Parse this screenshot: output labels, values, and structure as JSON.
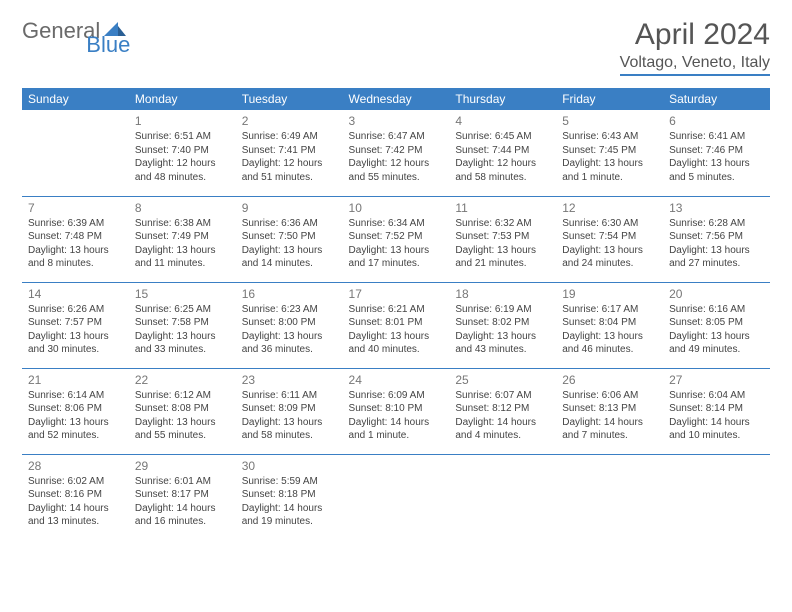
{
  "logo": {
    "part1": "General",
    "part2": "Blue"
  },
  "title": "April 2024",
  "location": "Voltago, Veneto, Italy",
  "headers": [
    "Sunday",
    "Monday",
    "Tuesday",
    "Wednesday",
    "Thursday",
    "Friday",
    "Saturday"
  ],
  "colors": {
    "accent": "#3a7fc4",
    "text": "#444",
    "muted": "#777"
  },
  "weeks": [
    [
      null,
      {
        "n": "1",
        "sr": "6:51 AM",
        "ss": "7:40 PM",
        "dl": "12 hours and 48 minutes."
      },
      {
        "n": "2",
        "sr": "6:49 AM",
        "ss": "7:41 PM",
        "dl": "12 hours and 51 minutes."
      },
      {
        "n": "3",
        "sr": "6:47 AM",
        "ss": "7:42 PM",
        "dl": "12 hours and 55 minutes."
      },
      {
        "n": "4",
        "sr": "6:45 AM",
        "ss": "7:44 PM",
        "dl": "12 hours and 58 minutes."
      },
      {
        "n": "5",
        "sr": "6:43 AM",
        "ss": "7:45 PM",
        "dl": "13 hours and 1 minute."
      },
      {
        "n": "6",
        "sr": "6:41 AM",
        "ss": "7:46 PM",
        "dl": "13 hours and 5 minutes."
      }
    ],
    [
      {
        "n": "7",
        "sr": "6:39 AM",
        "ss": "7:48 PM",
        "dl": "13 hours and 8 minutes."
      },
      {
        "n": "8",
        "sr": "6:38 AM",
        "ss": "7:49 PM",
        "dl": "13 hours and 11 minutes."
      },
      {
        "n": "9",
        "sr": "6:36 AM",
        "ss": "7:50 PM",
        "dl": "13 hours and 14 minutes."
      },
      {
        "n": "10",
        "sr": "6:34 AM",
        "ss": "7:52 PM",
        "dl": "13 hours and 17 minutes."
      },
      {
        "n": "11",
        "sr": "6:32 AM",
        "ss": "7:53 PM",
        "dl": "13 hours and 21 minutes."
      },
      {
        "n": "12",
        "sr": "6:30 AM",
        "ss": "7:54 PM",
        "dl": "13 hours and 24 minutes."
      },
      {
        "n": "13",
        "sr": "6:28 AM",
        "ss": "7:56 PM",
        "dl": "13 hours and 27 minutes."
      }
    ],
    [
      {
        "n": "14",
        "sr": "6:26 AM",
        "ss": "7:57 PM",
        "dl": "13 hours and 30 minutes."
      },
      {
        "n": "15",
        "sr": "6:25 AM",
        "ss": "7:58 PM",
        "dl": "13 hours and 33 minutes."
      },
      {
        "n": "16",
        "sr": "6:23 AM",
        "ss": "8:00 PM",
        "dl": "13 hours and 36 minutes."
      },
      {
        "n": "17",
        "sr": "6:21 AM",
        "ss": "8:01 PM",
        "dl": "13 hours and 40 minutes."
      },
      {
        "n": "18",
        "sr": "6:19 AM",
        "ss": "8:02 PM",
        "dl": "13 hours and 43 minutes."
      },
      {
        "n": "19",
        "sr": "6:17 AM",
        "ss": "8:04 PM",
        "dl": "13 hours and 46 minutes."
      },
      {
        "n": "20",
        "sr": "6:16 AM",
        "ss": "8:05 PM",
        "dl": "13 hours and 49 minutes."
      }
    ],
    [
      {
        "n": "21",
        "sr": "6:14 AM",
        "ss": "8:06 PM",
        "dl": "13 hours and 52 minutes."
      },
      {
        "n": "22",
        "sr": "6:12 AM",
        "ss": "8:08 PM",
        "dl": "13 hours and 55 minutes."
      },
      {
        "n": "23",
        "sr": "6:11 AM",
        "ss": "8:09 PM",
        "dl": "13 hours and 58 minutes."
      },
      {
        "n": "24",
        "sr": "6:09 AM",
        "ss": "8:10 PM",
        "dl": "14 hours and 1 minute."
      },
      {
        "n": "25",
        "sr": "6:07 AM",
        "ss": "8:12 PM",
        "dl": "14 hours and 4 minutes."
      },
      {
        "n": "26",
        "sr": "6:06 AM",
        "ss": "8:13 PM",
        "dl": "14 hours and 7 minutes."
      },
      {
        "n": "27",
        "sr": "6:04 AM",
        "ss": "8:14 PM",
        "dl": "14 hours and 10 minutes."
      }
    ],
    [
      {
        "n": "28",
        "sr": "6:02 AM",
        "ss": "8:16 PM",
        "dl": "14 hours and 13 minutes."
      },
      {
        "n": "29",
        "sr": "6:01 AM",
        "ss": "8:17 PM",
        "dl": "14 hours and 16 minutes."
      },
      {
        "n": "30",
        "sr": "5:59 AM",
        "ss": "8:18 PM",
        "dl": "14 hours and 19 minutes."
      },
      null,
      null,
      null,
      null
    ]
  ],
  "labels": {
    "sunrise": "Sunrise:",
    "sunset": "Sunset:",
    "daylight": "Daylight:"
  }
}
